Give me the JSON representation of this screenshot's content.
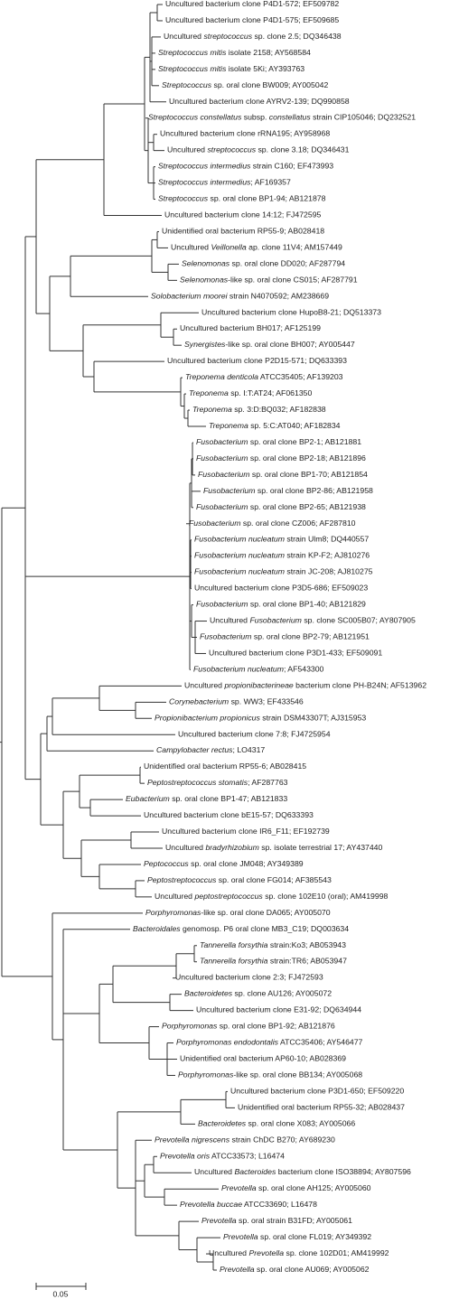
{
  "leaves": [
    [
      "Uncultured bacterium clone P4D1-572; EF509782"
    ],
    [
      "Uncultured bacterium clone P4D1-575; EF509685"
    ],
    [
      "Uncultured ",
      {
        "i": "streptococcus"
      },
      " sp. clone 2.5; DQ346438"
    ],
    [
      {
        "i": "Streptococcus mitis"
      },
      " isolate 2158; AY568584"
    ],
    [
      {
        "i": "Streptococcus mitis"
      },
      " isolate 5Ki; AY393763"
    ],
    [
      {
        "i": "Streptococcus"
      },
      " sp. oral clone BW009; AY005042"
    ],
    [
      "Uncultured bacterium clone AYRV2-139; DQ990858"
    ],
    [
      {
        "i": "Streptococcus constellatus"
      },
      " subsp. ",
      {
        "i": "constellatus"
      },
      " strain CIP105046; DQ232521"
    ],
    [
      "Uncultured bacterium clone rRNA195; AY958968"
    ],
    [
      "Uncultured ",
      {
        "i": "streptococcus"
      },
      " sp. clone 3.18; DQ346431"
    ],
    [
      {
        "i": "Streptococcus intermedius"
      },
      " strain C160; EF473993"
    ],
    [
      {
        "i": "Streptococcus intermedius"
      },
      "; AF169357"
    ],
    [
      {
        "i": "Streptococcus"
      },
      " sp. oral clone BP1-94; AB121878"
    ],
    [
      "Uncultured bacterium clone 14:12; FJ472595"
    ],
    [
      "Unidentified oral bacterium RP55-9; AB028418"
    ],
    [
      "Uncultured ",
      {
        "i": "Veillonella"
      },
      " ap. clone 11V4; AM157449"
    ],
    [
      {
        "i": "Selenomonas"
      },
      " sp. oral clone DD020; AF287794"
    ],
    [
      {
        "i": "Selenomonas"
      },
      "-like sp. oral clone CS015; AF287791"
    ],
    [
      {
        "i": "Solobacterium moorei"
      },
      " strain N4070592; AM238669"
    ],
    [
      "Uncultured bacterium clone HupoB8-21; DQ513373"
    ],
    [
      "Uncultured bacterium BH017; AF125199"
    ],
    [
      {
        "i": "Synergistes"
      },
      "-like sp. oral clone BH007; AY005447"
    ],
    [
      "Uncultured bacterium clone P2D15-571; DQ633393"
    ],
    [
      {
        "i": "Treponema denticola"
      },
      " ATCC35405; AF139203"
    ],
    [
      {
        "i": "Treponema"
      },
      " sp. I:T:AT24; AF061350"
    ],
    [
      {
        "i": "Treponema"
      },
      " sp. 3:D:BQ032; AF182838"
    ],
    [
      {
        "i": "Treponema"
      },
      " sp. 5:C:AT040; AF182834"
    ],
    [
      {
        "i": "Fusobacterium"
      },
      " sp. oral clone BP2-1; AB121881"
    ],
    [
      {
        "i": "Fusobacterium"
      },
      " sp. oral clone BP2-18; AB121896"
    ],
    [
      {
        "i": "Fusobacterium"
      },
      " sp. oral clone BP1-70; AB121854"
    ],
    [
      {
        "i": "Fusobacterium"
      },
      " sp. oral clone BP2-86; AB121958"
    ],
    [
      {
        "i": "Fusobacterium"
      },
      " sp. oral clone BP2-65; AB121938"
    ],
    [
      {
        "i": "Fusobacterium"
      },
      " sp. oral clone CZ006; AF287810"
    ],
    [
      {
        "i": "Fusobacterium nucleatum"
      },
      " strain Ulm8; DQ440557"
    ],
    [
      {
        "i": "Fusobacterium nucleatum"
      },
      " strain KP-F2; AJ810276"
    ],
    [
      {
        "i": "Fusobacterium nucleatum"
      },
      " strain JC-208; AJ810275"
    ],
    [
      "Uncultured bacterium clone P3D5-686; EF509023"
    ],
    [
      {
        "i": "Fusobacterium"
      },
      " sp. oral clone BP1-40; AB121829"
    ],
    [
      "Uncultured ",
      {
        "i": "Fusobacterium"
      },
      " sp. clone SC005B07; AY807905"
    ],
    [
      {
        "i": "Fusobacterium"
      },
      " sp. oral clone BP2-79; AB121951"
    ],
    [
      "Uncultured bacterium clone P3D1-433; EF509091"
    ],
    [
      {
        "i": "Fusobacterium nucleatum"
      },
      "; AF543300"
    ],
    [
      "Uncultured ",
      {
        "i": "propionibacterineae"
      },
      " bacterium clone PH-B24N; AF513962"
    ],
    [
      {
        "i": "Corynebacterium"
      },
      " sp. WW3; EF433546"
    ],
    [
      {
        "i": "Propionibacterium propionicus"
      },
      " strain DSM43307T; AJ315953"
    ],
    [
      "Uncultured bacterium clone 7:8; FJ4725954"
    ],
    [
      {
        "i": "Campylobacter rectus"
      },
      "; LO4317"
    ],
    [
      "Unidentified oral bacterium RP55-6; AB028415"
    ],
    [
      {
        "i": "Peptostreptococcus stomatis"
      },
      "; AF287763"
    ],
    [
      {
        "i": "Eubacterium"
      },
      " sp. oral clone BP1-47; AB121833"
    ],
    [
      "Uncultured bacterium clone bE15-57; DQ633393"
    ],
    [
      "Uncultured bacterium clone IR6_F11; EF192739"
    ],
    [
      "Uncultured ",
      {
        "i": "bradyrhizobium"
      },
      " sp. isolate terrestrial 17; AY437440"
    ],
    [
      {
        "i": "Peptococcus"
      },
      " sp. oral clone JM048; AY349389"
    ],
    [
      {
        "i": "Peptostreptococcus"
      },
      " sp. oral clone FG014; AF385543"
    ],
    [
      "Uncultured ",
      {
        "i": "peptostreptococcus"
      },
      " sp. clone 102E10 (oral); AM419998"
    ],
    [
      {
        "i": "Porphyromonas"
      },
      "-like sp. oral clone DA065; AY005070"
    ],
    [
      {
        "i": "Bacteroidales"
      },
      " genomosp. P6 oral clone MB3_C19; DQ003634"
    ],
    [
      {
        "i": "Tannerella forsythia"
      },
      " strain:Ko3; AB053943"
    ],
    [
      {
        "i": "Tannerella forsythia"
      },
      " strain:TR6; AB053947"
    ],
    [
      "Uncultured bacterium clone 2:3; FJ472593"
    ],
    [
      {
        "i": "Bacteroidetes"
      },
      " sp. clone AU126; AY005072"
    ],
    [
      "Uncultured bacterium clone E31-92; DQ634944"
    ],
    [
      {
        "i": "Porphyromonas"
      },
      " sp. oral clone BP1-92; AB121876"
    ],
    [
      {
        "i": "Porphyromonas endodontalis"
      },
      " ATCC35406; AY546477"
    ],
    [
      "Unidentified oral bacterium AP60-10; AB028369"
    ],
    [
      {
        "i": "Porphyromonas"
      },
      "-like sp. oral clone BB134; AY005068"
    ],
    [
      "Uncultured bacterium clone P3D1-650; EF509220"
    ],
    [
      "Unidentified oral bacterium RP55-32; AB028437"
    ],
    [
      {
        "i": "Bacteroidetes"
      },
      " sp. oral clone X083; AY005066"
    ],
    [
      {
        "i": "Prevotella nigrescens"
      },
      " strain ChDC B270; AY689230"
    ],
    [
      {
        "i": "Prevotella oris"
      },
      " ATCC33573; L16474"
    ],
    [
      "Uncultured ",
      {
        "i": "Bacteroides"
      },
      " bacterium clone ISO38894; AY807596"
    ],
    [
      {
        "i": "Prevotella"
      },
      " sp. oral clone AH125; AY005060"
    ],
    [
      {
        "i": "Prevotella buccae"
      },
      " ATCC33690; L16478"
    ],
    [
      {
        "i": "Prevotella"
      },
      " sp. oral strain B31FD; AY005061"
    ],
    [
      {
        "i": "Prevotella"
      },
      " sp. oral clone FL019; AY349392"
    ],
    [
      "Uncultured ",
      {
        "i": "Prevotella"
      },
      " sp. clone 102D01; AM419992"
    ],
    [
      {
        "i": "Prevotella"
      },
      " sp. oral clone AU069; AY005062"
    ]
  ],
  "scale_bar": {
    "label": "0.05"
  }
}
